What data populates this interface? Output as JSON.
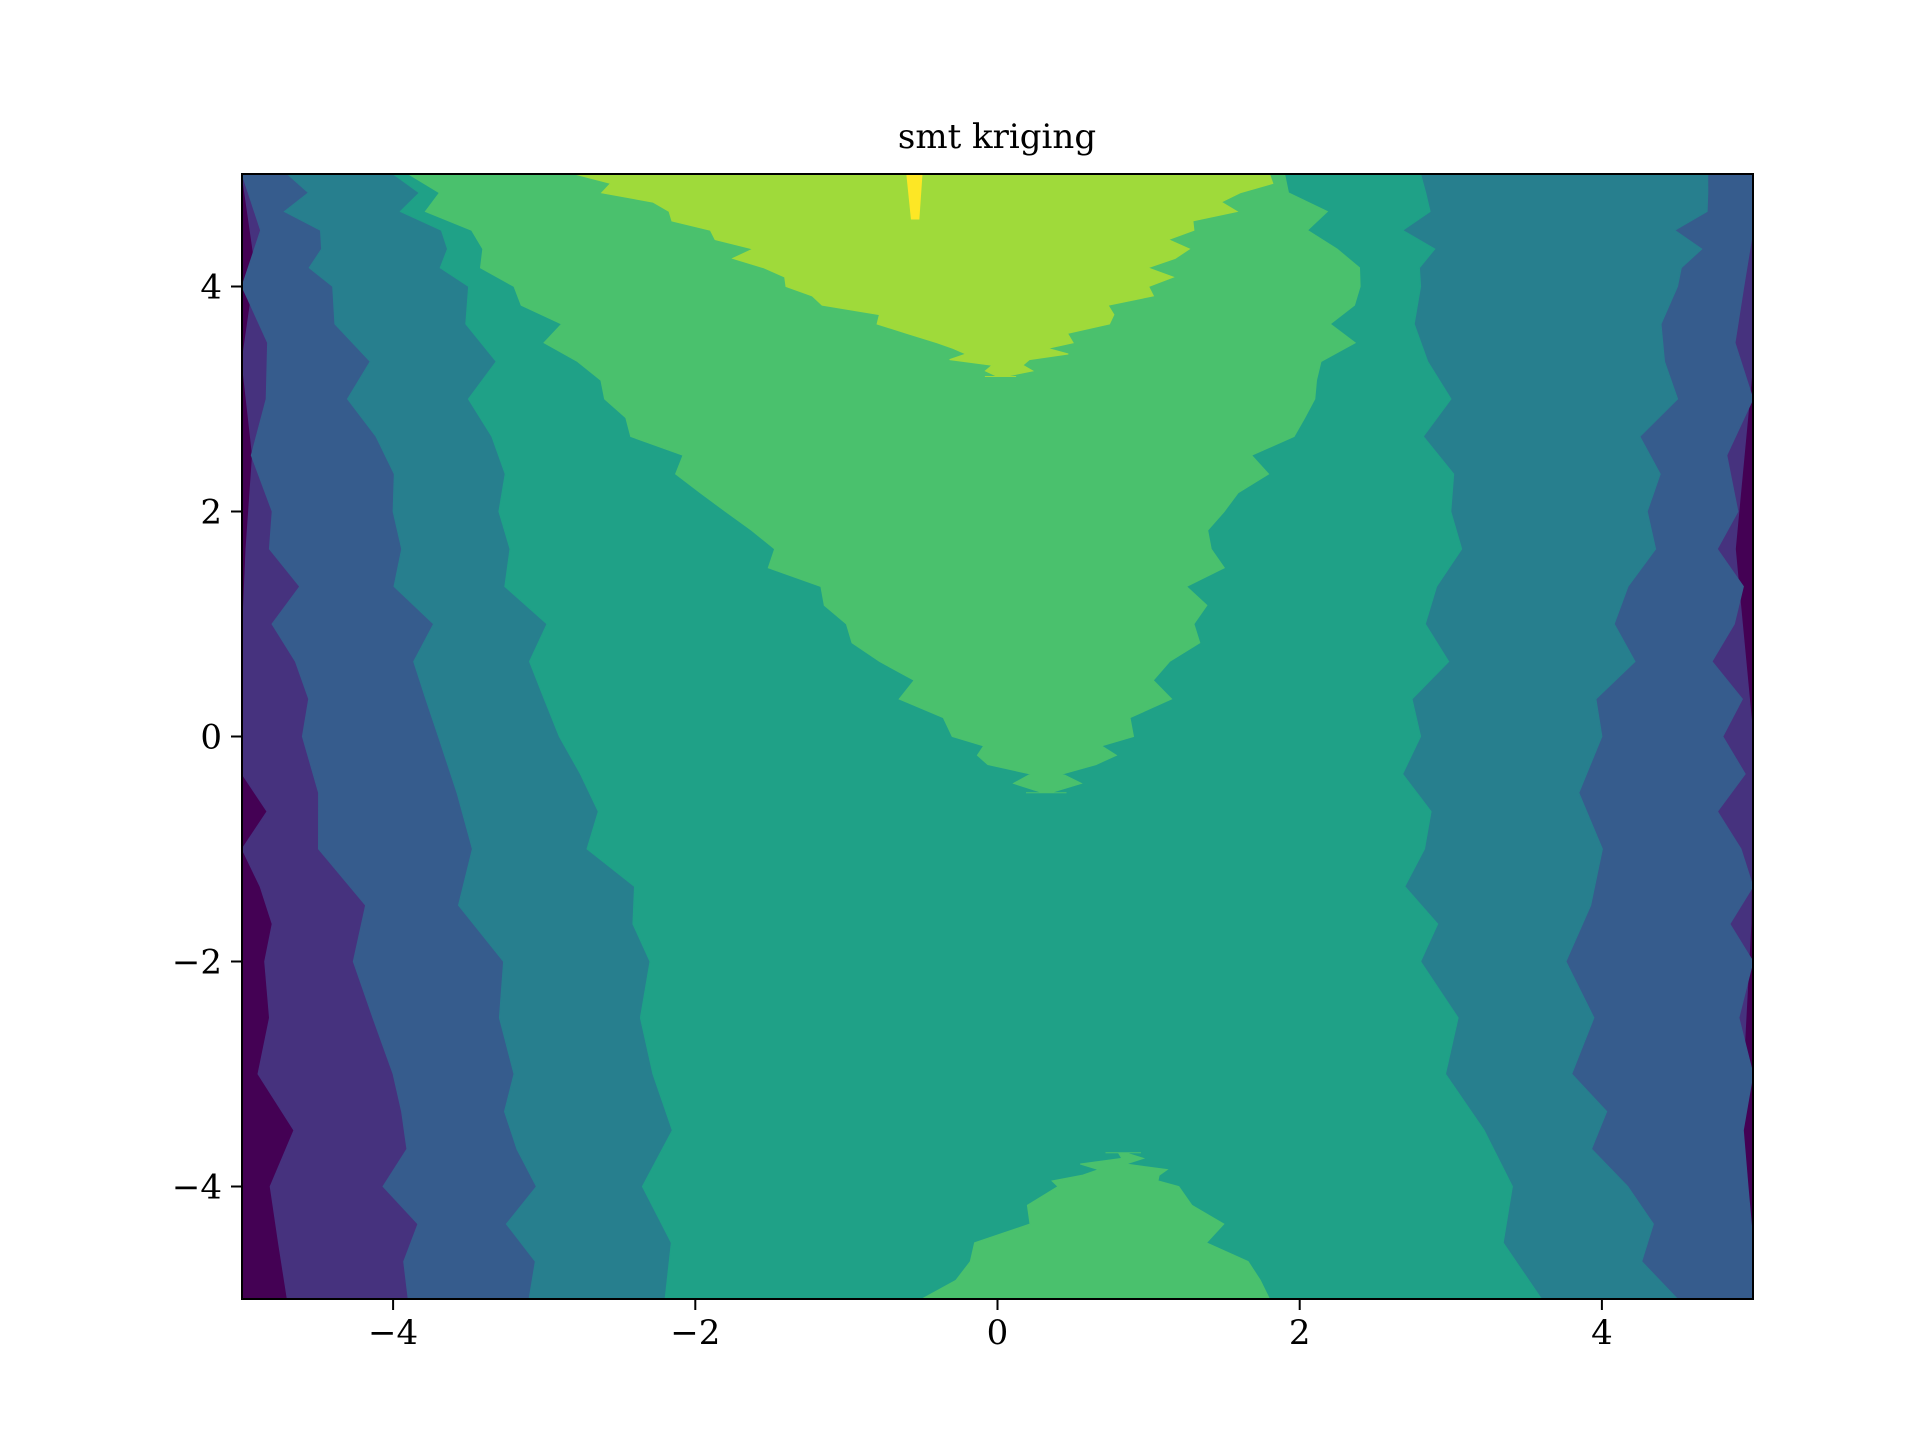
{
  "chart_data": {
    "type": "contourf",
    "title": "smt kriging",
    "xlim": [
      -5,
      5
    ],
    "ylim": [
      -5,
      5
    ],
    "xticks": [
      {
        "value": -4,
        "label": "−4"
      },
      {
        "value": -2,
        "label": "−2"
      },
      0,
      2,
      4
    ],
    "yticks": [
      {
        "value": -4,
        "label": "−4"
      },
      {
        "value": -2,
        "label": "−2"
      },
      0,
      2,
      4
    ],
    "colors": [
      "#440154",
      "#46327e",
      "#365c8d",
      "#277f8e",
      "#1fa187",
      "#4ac16d",
      "#9fda3a",
      "#fde725"
    ]
  }
}
